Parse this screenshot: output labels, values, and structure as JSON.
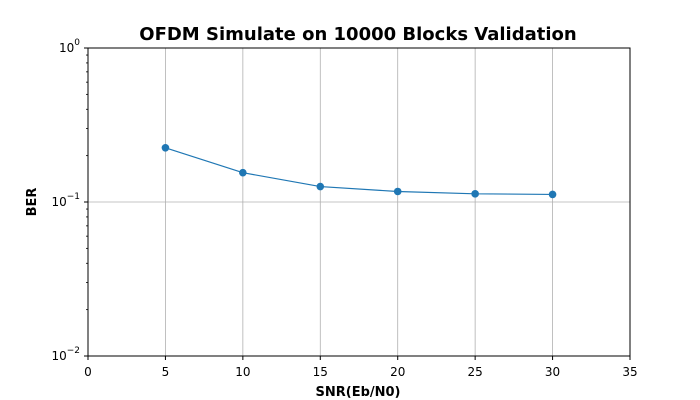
{
  "chart_data": {
    "type": "line",
    "title": "OFDM Simulate on 10000 Blocks Validation",
    "xlabel": "SNR(Eb/N0)",
    "ylabel": "BER",
    "x": [
      5,
      10,
      15,
      20,
      25,
      30
    ],
    "series": [
      {
        "values": [
          0.225,
          0.155,
          0.126,
          0.117,
          0.113,
          0.112
        ],
        "color": "#1f77b4"
      }
    ],
    "xlim": [
      0,
      35
    ],
    "ylim": [
      0.01,
      1
    ],
    "yscale": "log",
    "xticks": [
      0,
      5,
      10,
      15,
      20,
      25,
      30,
      35
    ],
    "xtick_labels": [
      "0",
      "5",
      "10",
      "15",
      "20",
      "25",
      "30",
      "35"
    ],
    "yticks": [
      0.01,
      0.1,
      1
    ],
    "ytick_labels": [
      {
        "base": "10",
        "exp": "−2"
      },
      {
        "base": "10",
        "exp": "−1"
      },
      {
        "base": "10",
        "exp": "0"
      }
    ],
    "grid": true,
    "legend": false
  }
}
